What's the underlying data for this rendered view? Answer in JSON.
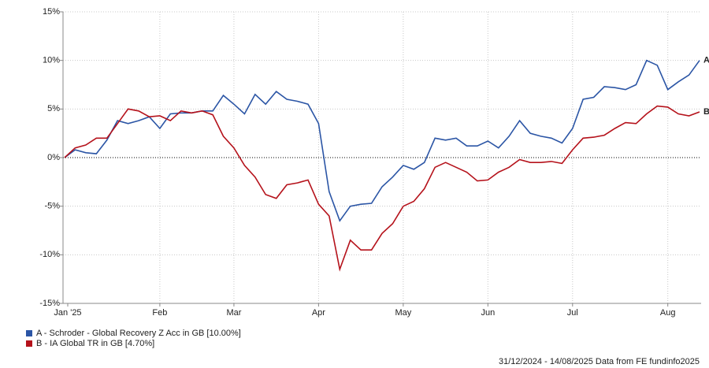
{
  "chart_data": {
    "type": "line",
    "categories": [
      "Jan '25",
      null,
      null,
      null,
      null,
      null,
      null,
      null,
      null,
      "Feb",
      null,
      null,
      null,
      null,
      null,
      null,
      "Mar",
      null,
      null,
      null,
      null,
      null,
      null,
      null,
      "Apr",
      null,
      null,
      null,
      null,
      null,
      null,
      null,
      "May",
      null,
      null,
      null,
      null,
      null,
      null,
      null,
      "Jun",
      null,
      null,
      null,
      null,
      null,
      null,
      null,
      "Jul",
      null,
      null,
      null,
      null,
      null,
      null,
      null,
      null,
      "Aug",
      null,
      null,
      null
    ],
    "series": [
      {
        "name": "A - Schroder - Global Recovery Z Acc in GB [10.00%]",
        "label": "A",
        "color": "#2b55a5",
        "values": [
          0,
          0.8,
          0.5,
          0.4,
          1.8,
          3.8,
          3.5,
          3.8,
          4.2,
          3.0,
          4.5,
          4.6,
          4.6,
          4.8,
          4.8,
          6.4,
          5.5,
          4.5,
          6.5,
          5.5,
          6.8,
          6.0,
          5.8,
          5.5,
          3.5,
          -3.5,
          -6.5,
          -5.0,
          -4.8,
          -4.7,
          -3.0,
          -2.0,
          -0.8,
          -1.2,
          -0.5,
          2.0,
          1.8,
          2.0,
          1.2,
          1.2,
          1.7,
          1.0,
          2.2,
          3.8,
          2.5,
          2.2,
          2.0,
          1.5,
          3.0,
          6.0,
          6.2,
          7.3,
          7.2,
          7.0,
          7.5,
          10.0,
          9.5,
          7.0,
          7.8,
          8.5,
          10.0
        ]
      },
      {
        "name": "B - IA Global TR in GB [4.70%]",
        "label": "B",
        "color": "#b5121b",
        "values": [
          0,
          1.0,
          1.3,
          2.0,
          2.0,
          3.5,
          5.0,
          4.8,
          4.2,
          4.3,
          3.8,
          4.8,
          4.6,
          4.8,
          4.4,
          2.2,
          1.0,
          -0.8,
          -2.0,
          -3.8,
          -4.2,
          -2.8,
          -2.6,
          -2.3,
          -4.8,
          -6.0,
          -11.5,
          -8.5,
          -9.5,
          -9.5,
          -7.8,
          -6.8,
          -5.0,
          -4.5,
          -3.2,
          -1.0,
          -0.5,
          -1.0,
          -1.5,
          -2.4,
          -2.3,
          -1.5,
          -1.0,
          -0.2,
          -0.5,
          -0.5,
          -0.4,
          -0.6,
          0.8,
          2.0,
          2.1,
          2.3,
          3.0,
          3.6,
          3.5,
          4.5,
          5.3,
          5.2,
          4.5,
          4.3,
          4.7
        ]
      }
    ],
    "ylim": [
      -15,
      15
    ],
    "yticks": [
      {
        "value": -15,
        "label": "-15%"
      },
      {
        "value": -10,
        "label": "-10%"
      },
      {
        "value": -5,
        "label": "-5%"
      },
      {
        "value": 0,
        "label": "0%"
      },
      {
        "value": 5,
        "label": "5%"
      },
      {
        "value": 10,
        "label": "10%"
      },
      {
        "value": 15,
        "label": "15%"
      }
    ],
    "grid": true,
    "legend": "bottom-left",
    "footer": "31/12/2024 - 14/08/2025 Data from FE fundinfo2025"
  }
}
